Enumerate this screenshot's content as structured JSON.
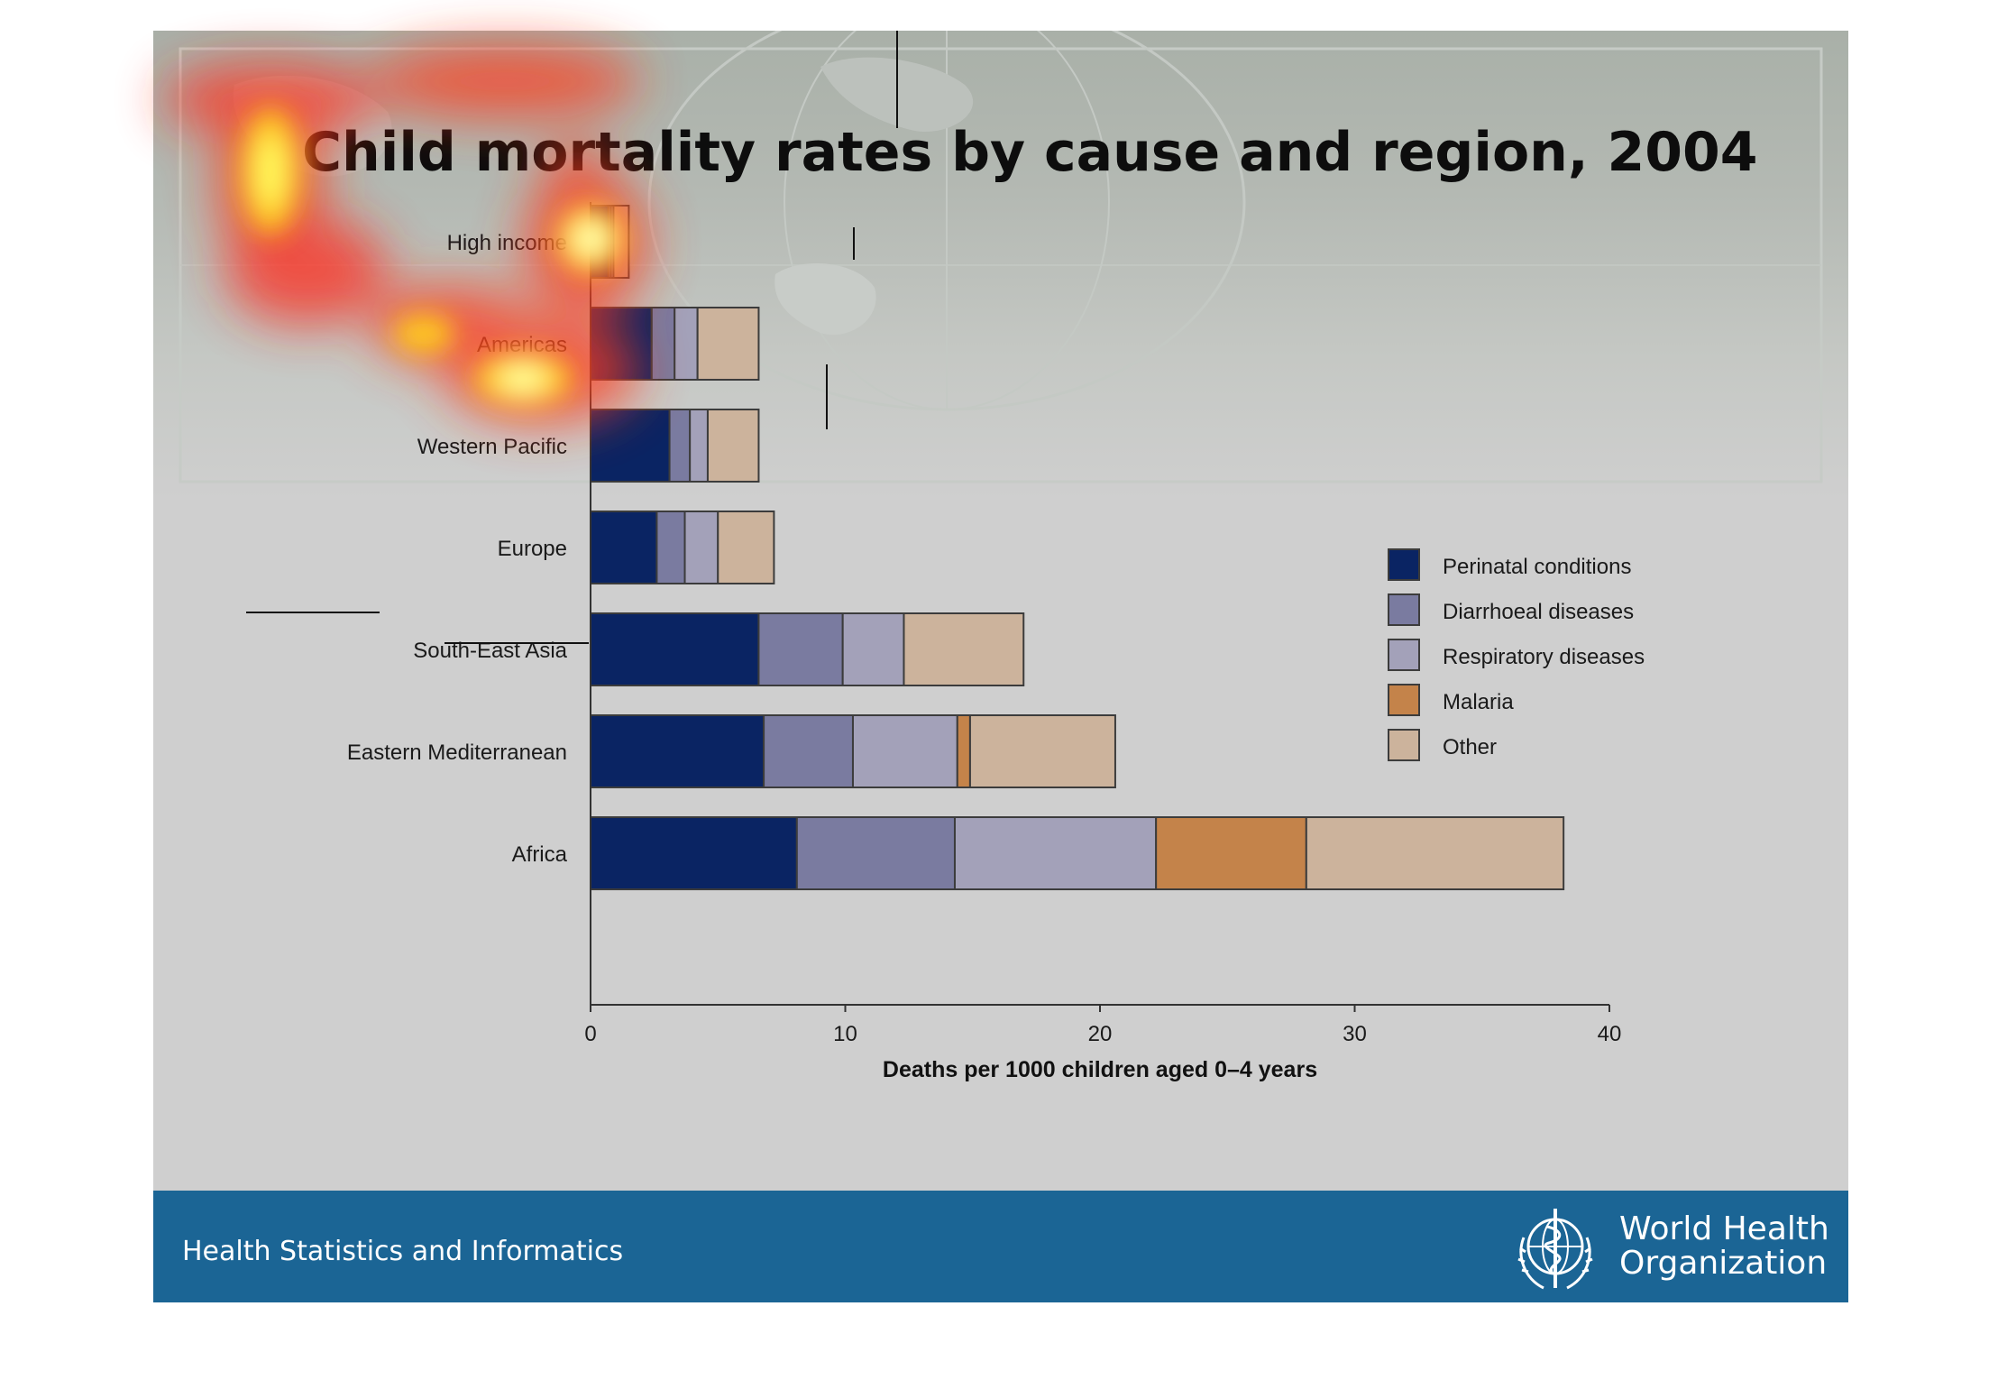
{
  "title": "Child mortality rates by cause and region, 2004",
  "footer": {
    "program": "Health Statistics and Informatics",
    "org_line1": "World Health",
    "org_line2": "Organization"
  },
  "colors": {
    "perinatal": "#0a2463",
    "diarrhoeal": "#7a7ba0",
    "respiratory": "#a3a1b9",
    "malaria": "#c4834a",
    "other": "#ccb39c",
    "footer_bg": "#1b6595"
  },
  "chart_data": {
    "type": "bar",
    "orientation": "horizontal",
    "stacked": true,
    "categories": [
      "High income",
      "Americas",
      "Western Pacific",
      "Europe",
      "South-East Asia",
      "Eastern Mediterranean",
      "Africa"
    ],
    "series": [
      {
        "name": "Perinatal conditions",
        "values": [
          0.7,
          2.4,
          3.1,
          2.6,
          6.6,
          6.8,
          8.1
        ]
      },
      {
        "name": "Diarrhoeal diseases",
        "values": [
          0.1,
          0.9,
          0.8,
          1.1,
          3.3,
          3.5,
          6.2
        ]
      },
      {
        "name": "Respiratory diseases",
        "values": [
          0.1,
          0.9,
          0.7,
          1.3,
          2.4,
          4.1,
          7.9
        ]
      },
      {
        "name": "Malaria",
        "values": [
          0,
          0,
          0,
          0,
          0,
          0.5,
          5.9
        ]
      },
      {
        "name": "Other",
        "values": [
          0.6,
          2.4,
          2.0,
          2.2,
          4.7,
          5.7,
          10.1
        ]
      }
    ],
    "xlabel": "Deaths per 1000 children aged 0–4 years",
    "ylabel": "",
    "xlim": [
      0,
      40
    ],
    "xticks": [
      0,
      10,
      20,
      30,
      40
    ],
    "grid": false,
    "legend": "right"
  }
}
